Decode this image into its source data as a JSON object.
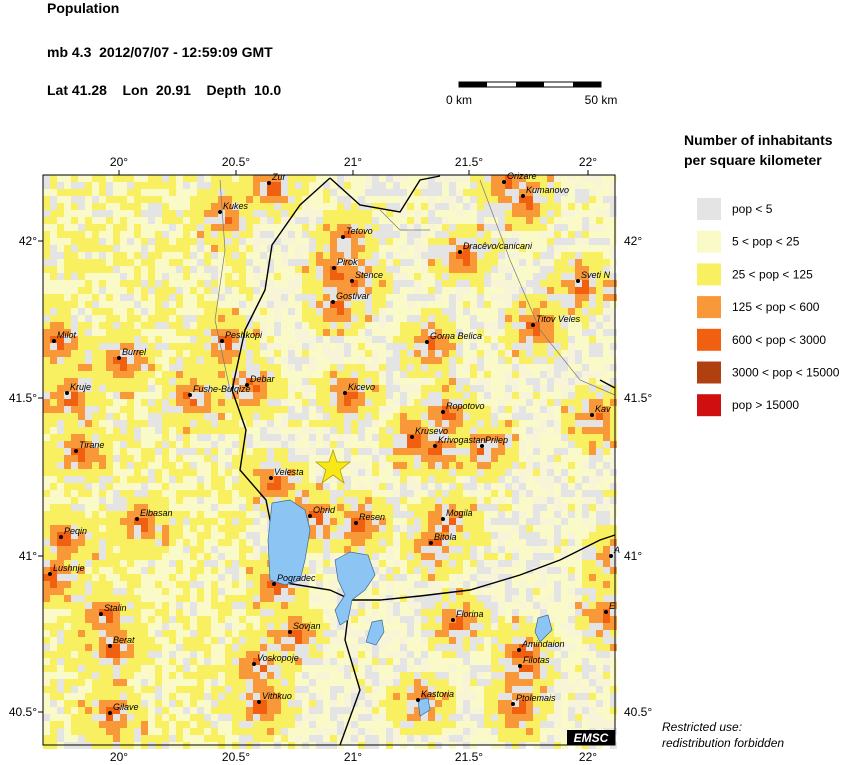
{
  "header": {
    "title": "Population",
    "event": "mb 4.3  2012/07/07 - 12:59:09 GMT",
    "location": "Lat 41.28    Lon  20.91    Depth  10.0"
  },
  "scale_bar": {
    "start": "0 km",
    "end": "50 km"
  },
  "map": {
    "lon_labels": [
      "20°",
      "20.5°",
      "21°",
      "21.5°",
      "22°"
    ],
    "lat_labels": [
      "42°",
      "41.5°",
      "41°",
      "40.5°"
    ],
    "cities": [
      "Zur",
      "Kukes",
      "Orizare",
      "Kumanovo",
      "Tetovo",
      "Dracêvo/canicani",
      "Sveti N",
      "Pirok",
      "Stence",
      "Gostivar",
      "Titov Veles",
      "Milot",
      "Peshkopi",
      "Gorna Belica",
      "Burrel",
      "Debar",
      "Fushe-Bulqize",
      "Kruje",
      "Kicevo",
      "Ropotovo",
      "Kav",
      "Krusevo",
      "Krivogastani",
      "Prilep",
      "Tirane",
      "Velesta",
      "Ohrid",
      "Elbasan",
      "Resen",
      "Mogila",
      "Peqin",
      "Bitola",
      "A",
      "Lushnje",
      "Pogradec",
      "Stalin",
      "E",
      "Florina",
      "Sovjan",
      "Amindaion",
      "Berat",
      "Filotas",
      "Voskopoje",
      "Vithkuo",
      "Kastoria",
      "Ptolemais",
      "Gilave"
    ],
    "credit": "EMSC"
  },
  "legend": {
    "title": [
      "Number of inhabitants",
      "per square kilometer"
    ],
    "items": [
      {
        "label": "pop < 5",
        "color": "#e4e4e4"
      },
      {
        "label": "5 < pop < 25",
        "color": "#fafac8"
      },
      {
        "label": "25 < pop < 125",
        "color": "#f8f060"
      },
      {
        "label": "125 < pop < 600",
        "color": "#f89838"
      },
      {
        "label": "600 < pop < 3000",
        "color": "#f06010"
      },
      {
        "label": "3000 < pop < 15000",
        "color": "#b04010"
      },
      {
        "label": "pop > 15000",
        "color": "#d01010"
      }
    ]
  },
  "notice": [
    "Restricted use:",
    "redistribution forbidden"
  ]
}
